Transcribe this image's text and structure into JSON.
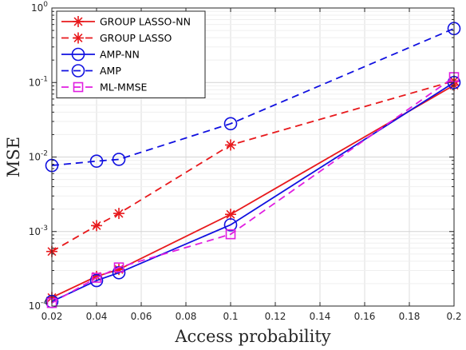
{
  "chart_data": {
    "type": "line",
    "xlabel": "Access probability",
    "ylabel": "MSE",
    "xlim": [
      0.02,
      0.2
    ],
    "ylim": [
      0.0001,
      1
    ],
    "yscale": "log",
    "grid": true,
    "legend_position": "top-left",
    "x_ticks": [
      "0.02",
      "0.04",
      "0.06",
      "0.08",
      "0.1",
      "0.12",
      "0.14",
      "0.16",
      "0.18",
      "0.2"
    ],
    "y_ticks": [
      {
        "value": 0.0001,
        "base": "10",
        "exp": "-4"
      },
      {
        "value": 0.001,
        "base": "10",
        "exp": "-3"
      },
      {
        "value": 0.01,
        "base": "10",
        "exp": "-2"
      },
      {
        "value": 0.1,
        "base": "10",
        "exp": "-1"
      },
      {
        "value": 1,
        "base": "10",
        "exp": "0"
      }
    ],
    "series": [
      {
        "name": "GROUP LASSO-NN",
        "color": "#e8191c",
        "dash": "solid",
        "marker": "asterisk",
        "x": [
          0.02,
          0.04,
          0.05,
          0.1,
          0.2
        ],
        "y": [
          0.00013,
          0.00025,
          0.00031,
          0.0017,
          0.092
        ]
      },
      {
        "name": "GROUP LASSO",
        "color": "#e8191c",
        "dash": "dashed",
        "marker": "asterisk",
        "x": [
          0.02,
          0.04,
          0.05,
          0.1,
          0.2
        ],
        "y": [
          0.00054,
          0.0012,
          0.00175,
          0.0145,
          0.105
        ]
      },
      {
        "name": "AMP-NN",
        "color": "#1010e0",
        "dash": "solid",
        "marker": "circle",
        "x": [
          0.02,
          0.04,
          0.05,
          0.1,
          0.2
        ],
        "y": [
          0.000115,
          0.00022,
          0.00028,
          0.00123,
          0.1
        ]
      },
      {
        "name": "AMP",
        "color": "#1010e0",
        "dash": "dashed",
        "marker": "circle",
        "x": [
          0.02,
          0.04,
          0.05,
          0.1,
          0.2
        ],
        "y": [
          0.0077,
          0.0088,
          0.0093,
          0.028,
          0.53
        ]
      },
      {
        "name": "ML-MMSE",
        "color": "#e01ee0",
        "dash": "dashed",
        "marker": "square",
        "x": [
          0.02,
          0.04,
          0.05,
          0.1,
          0.2
        ],
        "y": [
          0.00011,
          0.00024,
          0.00033,
          0.00092,
          0.118
        ]
      }
    ]
  }
}
